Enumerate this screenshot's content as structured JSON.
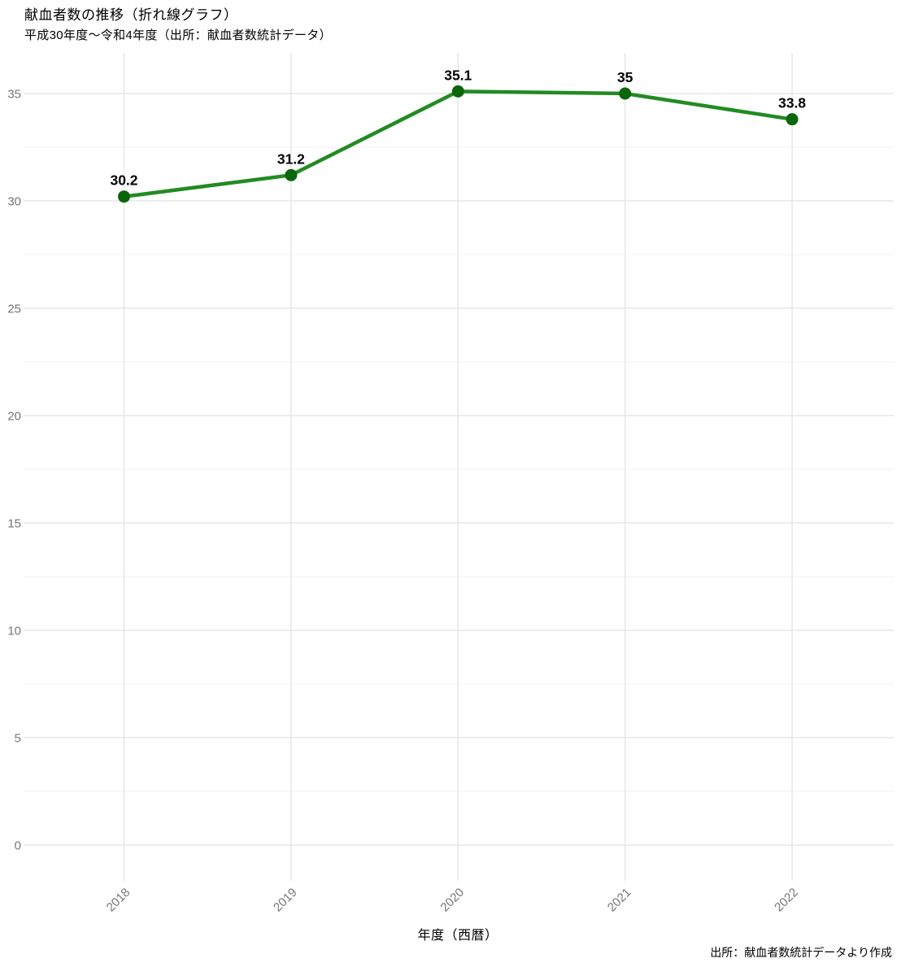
{
  "chart_data": {
    "type": "line",
    "title": "献血者数の推移（折れ線グラフ）",
    "subtitle": "平成30年度～令和4年度（出所：献血者数統計データ）",
    "xlabel": "年度（西暦）",
    "ylabel": "",
    "caption": "出所：献血者数統計データより作成",
    "categories": [
      "2018",
      "2019",
      "2020",
      "2021",
      "2022"
    ],
    "series": [
      {
        "name": "献血者数",
        "values": [
          30.2,
          31.2,
          35.1,
          35,
          33.8
        ]
      }
    ],
    "point_labels": [
      "30.2",
      "31.2",
      "35.1",
      "35",
      "33.8"
    ],
    "y_ticks": [
      0,
      5,
      10,
      15,
      20,
      25,
      30,
      35
    ],
    "y_minor_ticks": [
      2.5,
      7.5,
      12.5,
      17.5,
      22.5,
      27.5,
      32.5
    ],
    "ylim": [
      -1.7,
      36.9
    ],
    "grid": "horizontal major+minor, vertical major",
    "legend_position": "none",
    "colors": {
      "line": "#228B22",
      "marker": "#0a660a",
      "grid_major": "#e2e2e2",
      "grid_minor": "#f0f0f0",
      "tick_label": "#757575",
      "text": "#000000",
      "background": "#ffffff"
    }
  }
}
